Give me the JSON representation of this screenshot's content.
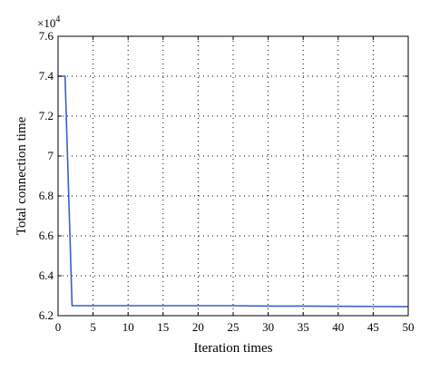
{
  "chart_data": {
    "type": "line",
    "title": "",
    "xlabel": "Iteration times",
    "ylabel": "Total connection time",
    "multiplier": "×10",
    "multiplier_exp": "4",
    "xlim": [
      0,
      50
    ],
    "ylim": [
      6.2,
      7.6
    ],
    "xticks": [
      0,
      5,
      10,
      15,
      20,
      25,
      30,
      35,
      40,
      45,
      50
    ],
    "yticks": [
      6.2,
      6.4,
      6.6,
      6.8,
      7.0,
      7.2,
      7.4,
      7.6
    ],
    "ytick_labels": [
      "6.2",
      "6.4",
      "6.6",
      "6.8",
      "7",
      "7.2",
      "7.4",
      "7.6"
    ],
    "grid": true,
    "line_color": "#3a5fc8",
    "series": [
      {
        "x": [
          0,
          1,
          2,
          5,
          10,
          15,
          20,
          25,
          30,
          35,
          40,
          45,
          50
        ],
        "y": [
          7.4,
          7.4,
          6.25,
          6.25,
          6.25,
          6.25,
          6.25,
          6.25,
          6.248,
          6.248,
          6.247,
          6.246,
          6.245
        ]
      }
    ]
  }
}
